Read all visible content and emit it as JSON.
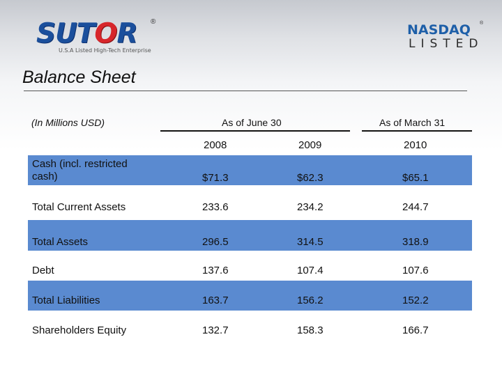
{
  "header": {
    "logo_left": {
      "text_primary": "SUT",
      "text_accent": "O",
      "text_end": "R",
      "reg_mark": "®",
      "tagline": "U.S.A Listed High-Tech Enterprise"
    },
    "logo_right": {
      "text_top": "NASDAQ",
      "reg_mark": "®",
      "text_bottom": "LISTED"
    }
  },
  "title": "Balance Sheet",
  "table": {
    "units": "(In Millions USD)",
    "groups": [
      "As of June 30",
      "As of March 31"
    ],
    "years": [
      "2008",
      "2009",
      "2010"
    ],
    "rows": [
      {
        "label": "Cash (incl. restricted cash)",
        "values": [
          "$71.3",
          "$62.3",
          "$65.1"
        ]
      },
      {
        "label": "Total Current Assets",
        "values": [
          "233.6",
          "234.2",
          "244.7"
        ]
      },
      {
        "label": "Total Assets",
        "values": [
          "296.5",
          "314.5",
          "318.9"
        ]
      },
      {
        "label": "Debt",
        "values": [
          "137.6",
          "107.4",
          "107.6"
        ]
      },
      {
        "label": "Total Liabilities",
        "values": [
          "163.7",
          "156.2",
          "152.2"
        ]
      },
      {
        "label": "Shareholders Equity",
        "values": [
          "132.7",
          "158.3",
          "166.7"
        ]
      }
    ]
  },
  "colors": {
    "row_band": "#5a8ad0",
    "logo_blue": "#1b4f9c",
    "logo_red": "#d7262b",
    "nasdaq_blue": "#1e5fa8"
  }
}
